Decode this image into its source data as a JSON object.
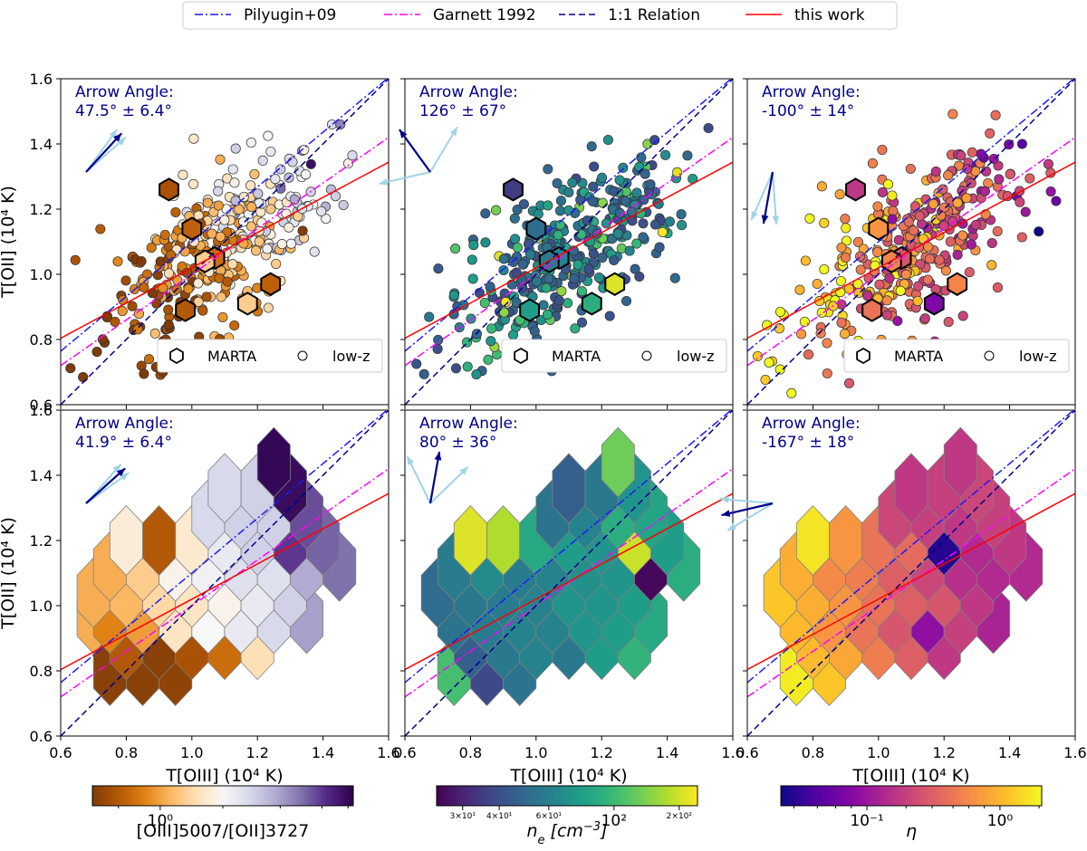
{
  "legend": {
    "entries": [
      {
        "label": "Pilyugin+09",
        "color": "#1a1aff",
        "dash": "dashdot"
      },
      {
        "label": "Garnett 1992",
        "color": "#ff00ff",
        "dash": "dashdot"
      },
      {
        "label": "1:1 Relation",
        "color": "#00008b",
        "dash": "dashed"
      },
      {
        "label": "this work",
        "color": "#ff0000",
        "dash": "solid"
      }
    ]
  },
  "chart_data": [
    {
      "type": "scatter",
      "row": 1,
      "col": 1,
      "xlabel": "",
      "ylabel": "T[OII] (10⁴ K)",
      "xlim": [
        0.6,
        1.6
      ],
      "ylim": [
        0.6,
        1.6
      ],
      "xticks": [],
      "yticks": [
        "0.6",
        "0.8",
        "1.0",
        "1.2",
        "1.4",
        "1.6"
      ],
      "annotation": {
        "line1": "Arrow Angle:",
        "line2": "47.5° ± 6.4°"
      },
      "arrows": {
        "main_deg": 47.5,
        "err_deg": 6.4
      },
      "colormap": "puor",
      "sublegend": {
        "marta": "MARTA",
        "lowz": "low-z"
      },
      "marta": [
        {
          "x": 0.93,
          "y": 1.26,
          "c": 0.08
        },
        {
          "x": 1.0,
          "y": 1.14,
          "c": 0.12
        },
        {
          "x": 1.07,
          "y": 1.05,
          "c": 0.15
        },
        {
          "x": 1.04,
          "y": 1.04,
          "c": 0.35
        },
        {
          "x": 1.24,
          "y": 0.97,
          "c": 0.12
        },
        {
          "x": 0.98,
          "y": 0.89,
          "c": 0.1
        },
        {
          "x": 1.17,
          "y": 0.91,
          "c": 0.35
        }
      ]
    },
    {
      "type": "scatter",
      "row": 1,
      "col": 2,
      "xlabel": "",
      "ylabel": "",
      "xlim": [
        0.6,
        1.6
      ],
      "ylim": [
        0.6,
        1.6
      ],
      "xticks": [],
      "yticks": [],
      "annotation": {
        "line1": "Arrow Angle:",
        "line2": "126° ± 67°"
      },
      "arrows": {
        "main_deg": 126,
        "err_deg": 67
      },
      "colormap": "viridis",
      "sublegend": {
        "marta": "MARTA",
        "lowz": "low-z"
      },
      "marta": [
        {
          "x": 0.93,
          "y": 1.26,
          "c": 0.18
        },
        {
          "x": 1.0,
          "y": 1.14,
          "c": 0.35
        },
        {
          "x": 1.07,
          "y": 1.05,
          "c": 0.45
        },
        {
          "x": 1.04,
          "y": 1.04,
          "c": 0.4
        },
        {
          "x": 1.24,
          "y": 0.97,
          "c": 0.95
        },
        {
          "x": 0.98,
          "y": 0.89,
          "c": 0.55
        },
        {
          "x": 1.17,
          "y": 0.91,
          "c": 0.62
        }
      ]
    },
    {
      "type": "scatter",
      "row": 1,
      "col": 3,
      "xlabel": "",
      "ylabel": "",
      "xlim": [
        0.6,
        1.6
      ],
      "ylim": [
        0.6,
        1.6
      ],
      "xticks": [],
      "yticks": [],
      "annotation": {
        "line1": "Arrow Angle:",
        "line2": "-100° ± 14°"
      },
      "arrows": {
        "main_deg": -100,
        "err_deg": 14
      },
      "colormap": "plasma",
      "sublegend": {
        "marta": "MARTA",
        "lowz": "low-z"
      },
      "marta": [
        {
          "x": 0.93,
          "y": 1.26,
          "c": 0.45
        },
        {
          "x": 1.0,
          "y": 1.14,
          "c": 0.75
        },
        {
          "x": 1.07,
          "y": 1.05,
          "c": 0.55
        },
        {
          "x": 1.04,
          "y": 1.04,
          "c": 0.7
        },
        {
          "x": 1.24,
          "y": 0.97,
          "c": 0.7
        },
        {
          "x": 0.98,
          "y": 0.89,
          "c": 0.65
        },
        {
          "x": 1.17,
          "y": 0.91,
          "c": 0.25
        }
      ]
    },
    {
      "type": "hexbin",
      "row": 2,
      "col": 1,
      "xlabel": "T[OIII] (10⁴ K)",
      "ylabel": "T[OII] (10⁴ K)",
      "xlim": [
        0.6,
        1.6
      ],
      "ylim": [
        0.6,
        1.6
      ],
      "xticks": [
        "0.6",
        "0.8",
        "1.0",
        "1.2",
        "1.4",
        "1.6"
      ],
      "yticks": [
        "0.6",
        "0.8",
        "1.0",
        "1.2",
        "1.4",
        "1.6"
      ],
      "annotation": {
        "line1": "Arrow Angle:",
        "line2": "41.9° ± 6.4°"
      },
      "arrows": {
        "main_deg": 41.9,
        "err_deg": 6.4
      },
      "colormap": "puor",
      "hexes": [
        {
          "x": 0.75,
          "y": 0.8,
          "c": 0.02
        },
        {
          "x": 0.85,
          "y": 0.8,
          "c": 0.02
        },
        {
          "x": 0.95,
          "y": 0.8,
          "c": 0.03
        },
        {
          "x": 0.7,
          "y": 0.96,
          "c": 0.28
        },
        {
          "x": 0.8,
          "y": 0.88,
          "c": 0.1
        },
        {
          "x": 0.9,
          "y": 0.88,
          "c": 0.02
        },
        {
          "x": 1.0,
          "y": 0.88,
          "c": 0.08
        },
        {
          "x": 1.1,
          "y": 0.88,
          "c": 0.15
        },
        {
          "x": 1.2,
          "y": 0.88,
          "c": 0.4
        },
        {
          "x": 0.75,
          "y": 0.96,
          "c": 0.2
        },
        {
          "x": 0.85,
          "y": 0.96,
          "c": 0.25
        },
        {
          "x": 0.95,
          "y": 0.96,
          "c": 0.42
        },
        {
          "x": 1.05,
          "y": 0.96,
          "c": 0.5
        },
        {
          "x": 1.15,
          "y": 0.96,
          "c": 0.55
        },
        {
          "x": 1.25,
          "y": 0.96,
          "c": 0.6
        },
        {
          "x": 1.35,
          "y": 0.96,
          "c": 0.72
        },
        {
          "x": 0.7,
          "y": 1.04,
          "c": 0.28
        },
        {
          "x": 0.8,
          "y": 1.04,
          "c": 0.3
        },
        {
          "x": 0.9,
          "y": 1.04,
          "c": 0.38
        },
        {
          "x": 1.0,
          "y": 1.04,
          "c": 0.42
        },
        {
          "x": 1.1,
          "y": 1.04,
          "c": 0.48
        },
        {
          "x": 1.2,
          "y": 1.04,
          "c": 0.55
        },
        {
          "x": 1.3,
          "y": 1.04,
          "c": 0.62
        },
        {
          "x": 0.75,
          "y": 1.12,
          "c": 0.28
        },
        {
          "x": 0.85,
          "y": 1.12,
          "c": 0.35
        },
        {
          "x": 0.95,
          "y": 1.12,
          "c": 0.48
        },
        {
          "x": 1.05,
          "y": 1.12,
          "c": 0.52
        },
        {
          "x": 1.15,
          "y": 1.12,
          "c": 0.58
        },
        {
          "x": 1.25,
          "y": 1.12,
          "c": 0.58
        },
        {
          "x": 1.35,
          "y": 1.12,
          "c": 0.7
        },
        {
          "x": 1.45,
          "y": 1.12,
          "c": 0.8
        },
        {
          "x": 0.8,
          "y": 1.2,
          "c": 0.45
        },
        {
          "x": 0.9,
          "y": 1.2,
          "c": 0.1
        },
        {
          "x": 1.0,
          "y": 1.2,
          "c": 0.44
        },
        {
          "x": 1.1,
          "y": 1.2,
          "c": 0.55
        },
        {
          "x": 1.2,
          "y": 1.2,
          "c": 0.62
        },
        {
          "x": 1.3,
          "y": 1.2,
          "c": 0.88
        },
        {
          "x": 1.4,
          "y": 1.2,
          "c": 0.82
        },
        {
          "x": 1.05,
          "y": 1.28,
          "c": 0.6
        },
        {
          "x": 1.15,
          "y": 1.28,
          "c": 0.62
        },
        {
          "x": 1.25,
          "y": 1.28,
          "c": 0.62
        },
        {
          "x": 1.35,
          "y": 1.28,
          "c": 0.85
        },
        {
          "x": 1.1,
          "y": 1.36,
          "c": 0.6
        },
        {
          "x": 1.2,
          "y": 1.36,
          "c": 0.62
        },
        {
          "x": 1.3,
          "y": 1.36,
          "c": 0.97
        },
        {
          "x": 1.25,
          "y": 1.44,
          "c": 0.98
        }
      ]
    },
    {
      "type": "hexbin",
      "row": 2,
      "col": 2,
      "xlabel": "T[OIII] (10⁴ K)",
      "ylabel": "",
      "xlim": [
        0.6,
        1.6
      ],
      "ylim": [
        0.6,
        1.6
      ],
      "xticks": [
        "0.6",
        "0.8",
        "1.0",
        "1.2",
        "1.4",
        "1.6"
      ],
      "yticks": [],
      "annotation": {
        "line1": "Arrow Angle:",
        "line2": "80° ± 36°"
      },
      "arrows": {
        "main_deg": 80,
        "err_deg": 36
      },
      "colormap": "viridis",
      "hexes": [
        {
          "x": 0.75,
          "y": 0.8,
          "c": 0.7
        },
        {
          "x": 0.85,
          "y": 0.8,
          "c": 0.22
        },
        {
          "x": 0.95,
          "y": 0.8,
          "c": 0.38
        },
        {
          "x": 0.8,
          "y": 0.88,
          "c": 0.3
        },
        {
          "x": 0.9,
          "y": 0.88,
          "c": 0.4
        },
        {
          "x": 1.0,
          "y": 0.88,
          "c": 0.45
        },
        {
          "x": 1.1,
          "y": 0.88,
          "c": 0.4
        },
        {
          "x": 1.2,
          "y": 0.88,
          "c": 0.55
        },
        {
          "x": 1.3,
          "y": 0.88,
          "c": 0.65
        },
        {
          "x": 0.75,
          "y": 0.96,
          "c": 0.38
        },
        {
          "x": 0.85,
          "y": 0.96,
          "c": 0.42
        },
        {
          "x": 0.95,
          "y": 0.96,
          "c": 0.45
        },
        {
          "x": 1.05,
          "y": 0.96,
          "c": 0.45
        },
        {
          "x": 1.15,
          "y": 0.96,
          "c": 0.52
        },
        {
          "x": 1.25,
          "y": 0.96,
          "c": 0.55
        },
        {
          "x": 1.35,
          "y": 0.96,
          "c": 0.6
        },
        {
          "x": 0.7,
          "y": 1.04,
          "c": 0.35
        },
        {
          "x": 0.8,
          "y": 1.04,
          "c": 0.4
        },
        {
          "x": 0.9,
          "y": 1.04,
          "c": 0.42
        },
        {
          "x": 1.0,
          "y": 1.04,
          "c": 0.45
        },
        {
          "x": 1.1,
          "y": 1.04,
          "c": 0.52
        },
        {
          "x": 1.2,
          "y": 1.04,
          "c": 0.52
        },
        {
          "x": 1.3,
          "y": 1.04,
          "c": 0.55
        },
        {
          "x": 0.75,
          "y": 1.12,
          "c": 0.42
        },
        {
          "x": 0.85,
          "y": 1.12,
          "c": 0.48
        },
        {
          "x": 0.95,
          "y": 1.12,
          "c": 0.42
        },
        {
          "x": 1.05,
          "y": 1.12,
          "c": 0.45
        },
        {
          "x": 1.15,
          "y": 1.12,
          "c": 0.5
        },
        {
          "x": 1.25,
          "y": 1.12,
          "c": 0.52
        },
        {
          "x": 1.35,
          "y": 1.12,
          "c": 0.02
        },
        {
          "x": 1.45,
          "y": 1.12,
          "c": 0.62
        },
        {
          "x": 0.8,
          "y": 1.2,
          "c": 0.95
        },
        {
          "x": 0.9,
          "y": 1.2,
          "c": 0.88
        },
        {
          "x": 1.0,
          "y": 1.2,
          "c": 0.6
        },
        {
          "x": 1.1,
          "y": 1.2,
          "c": 0.55
        },
        {
          "x": 1.2,
          "y": 1.2,
          "c": 0.52
        },
        {
          "x": 1.3,
          "y": 1.2,
          "c": 0.92
        },
        {
          "x": 1.4,
          "y": 1.2,
          "c": 0.55
        },
        {
          "x": 1.05,
          "y": 1.28,
          "c": 0.38
        },
        {
          "x": 1.15,
          "y": 1.28,
          "c": 0.45
        },
        {
          "x": 1.25,
          "y": 1.28,
          "c": 0.62
        },
        {
          "x": 1.35,
          "y": 1.28,
          "c": 0.58
        },
        {
          "x": 1.1,
          "y": 1.36,
          "c": 0.3
        },
        {
          "x": 1.2,
          "y": 1.36,
          "c": 0.4
        },
        {
          "x": 1.3,
          "y": 1.36,
          "c": 0.52
        },
        {
          "x": 1.25,
          "y": 1.44,
          "c": 0.78
        }
      ]
    },
    {
      "type": "hexbin",
      "row": 2,
      "col": 3,
      "xlabel": "T[OIII] (10⁴ K)",
      "ylabel": "",
      "xlim": [
        0.6,
        1.6
      ],
      "ylim": [
        0.6,
        1.6
      ],
      "xticks": [
        "0.6",
        "0.8",
        "1.0",
        "1.2",
        "1.4",
        "1.6"
      ],
      "yticks": [],
      "annotation": {
        "line1": "Arrow Angle:",
        "line2": "-167° ± 18°"
      },
      "arrows": {
        "main_deg": -167,
        "err_deg": 18
      },
      "colormap": "plasma",
      "hexes": [
        {
          "x": 0.75,
          "y": 0.8,
          "c": 0.97
        },
        {
          "x": 0.85,
          "y": 0.8,
          "c": 0.88
        },
        {
          "x": 0.8,
          "y": 0.88,
          "c": 0.85
        },
        {
          "x": 0.9,
          "y": 0.88,
          "c": 0.8
        },
        {
          "x": 1.0,
          "y": 0.88,
          "c": 0.68
        },
        {
          "x": 1.1,
          "y": 0.88,
          "c": 0.58
        },
        {
          "x": 1.2,
          "y": 0.88,
          "c": 0.45
        },
        {
          "x": 0.75,
          "y": 0.96,
          "c": 0.85
        },
        {
          "x": 0.85,
          "y": 0.96,
          "c": 0.75
        },
        {
          "x": 0.95,
          "y": 0.96,
          "c": 0.65
        },
        {
          "x": 1.05,
          "y": 0.96,
          "c": 0.55
        },
        {
          "x": 1.15,
          "y": 0.96,
          "c": 0.3
        },
        {
          "x": 1.25,
          "y": 0.96,
          "c": 0.48
        },
        {
          "x": 1.35,
          "y": 0.96,
          "c": 0.38
        },
        {
          "x": 0.7,
          "y": 1.04,
          "c": 0.88
        },
        {
          "x": 0.8,
          "y": 1.04,
          "c": 0.82
        },
        {
          "x": 0.9,
          "y": 1.04,
          "c": 0.75
        },
        {
          "x": 1.0,
          "y": 1.04,
          "c": 0.65
        },
        {
          "x": 1.1,
          "y": 1.04,
          "c": 0.58
        },
        {
          "x": 1.2,
          "y": 1.04,
          "c": 0.55
        },
        {
          "x": 1.3,
          "y": 1.04,
          "c": 0.45
        },
        {
          "x": 0.75,
          "y": 1.12,
          "c": 0.82
        },
        {
          "x": 0.85,
          "y": 1.12,
          "c": 0.72
        },
        {
          "x": 0.95,
          "y": 1.12,
          "c": 0.68
        },
        {
          "x": 1.05,
          "y": 1.12,
          "c": 0.58
        },
        {
          "x": 1.15,
          "y": 1.12,
          "c": 0.5
        },
        {
          "x": 1.25,
          "y": 1.12,
          "c": 0.42
        },
        {
          "x": 1.35,
          "y": 1.12,
          "c": 0.4
        },
        {
          "x": 1.45,
          "y": 1.12,
          "c": 0.4
        },
        {
          "x": 0.8,
          "y": 1.2,
          "c": 0.95
        },
        {
          "x": 0.9,
          "y": 1.2,
          "c": 0.75
        },
        {
          "x": 1.0,
          "y": 1.2,
          "c": 0.65
        },
        {
          "x": 1.1,
          "y": 1.2,
          "c": 0.62
        },
        {
          "x": 1.2,
          "y": 1.2,
          "c": 0.05
        },
        {
          "x": 1.3,
          "y": 1.2,
          "c": 0.4
        },
        {
          "x": 1.4,
          "y": 1.2,
          "c": 0.45
        },
        {
          "x": 1.05,
          "y": 1.28,
          "c": 0.5
        },
        {
          "x": 1.15,
          "y": 1.28,
          "c": 0.48
        },
        {
          "x": 1.25,
          "y": 1.28,
          "c": 0.45
        },
        {
          "x": 1.35,
          "y": 1.28,
          "c": 0.48
        },
        {
          "x": 1.1,
          "y": 1.36,
          "c": 0.45
        },
        {
          "x": 1.2,
          "y": 1.36,
          "c": 0.48
        },
        {
          "x": 1.3,
          "y": 1.36,
          "c": 0.5
        },
        {
          "x": 1.25,
          "y": 1.44,
          "c": 0.45
        }
      ]
    }
  ],
  "colorbars": [
    {
      "label": "[OIII]5007/[OII]3727",
      "colormap": "puor",
      "ticks": [
        {
          "label": "10⁰",
          "frac": 0.26
        }
      ],
      "minor_ticks": [
        0.1,
        0.5,
        0.72,
        0.88,
        0.98
      ]
    },
    {
      "label": "n_e [cm⁻³]",
      "label_main": "n",
      "label_sub": "e",
      "label_unit": "[cm",
      "label_sup": "−3",
      "label_end": "]",
      "colormap": "viridis",
      "ticks": [
        {
          "label": "3×10¹",
          "frac": 0.1
        },
        {
          "label": "4×10¹",
          "frac": 0.24
        },
        {
          "label": "6×10¹",
          "frac": 0.43
        },
        {
          "label": "10²",
          "frac": 0.68
        },
        {
          "label": "2×10²",
          "frac": 0.93
        }
      ]
    },
    {
      "label": "η",
      "colormap": "plasma",
      "ticks": [
        {
          "label": "10⁻¹",
          "frac": 0.33
        },
        {
          "label": "10⁰",
          "frac": 0.84
        }
      ],
      "minor_ticks": [
        0.05,
        0.14,
        0.21,
        0.27,
        0.48,
        0.58,
        0.66,
        0.72,
        0.78,
        0.99
      ]
    }
  ],
  "fits": {
    "pilyugin09": {
      "slope": 0.84,
      "intercept": 0.26
    },
    "garnett1992": {
      "slope": 0.7,
      "intercept": 0.3
    },
    "one_to_one": {
      "slope": 1.0,
      "intercept": 0.0
    },
    "this_work": {
      "slope": 0.54,
      "intercept": 0.48
    }
  }
}
